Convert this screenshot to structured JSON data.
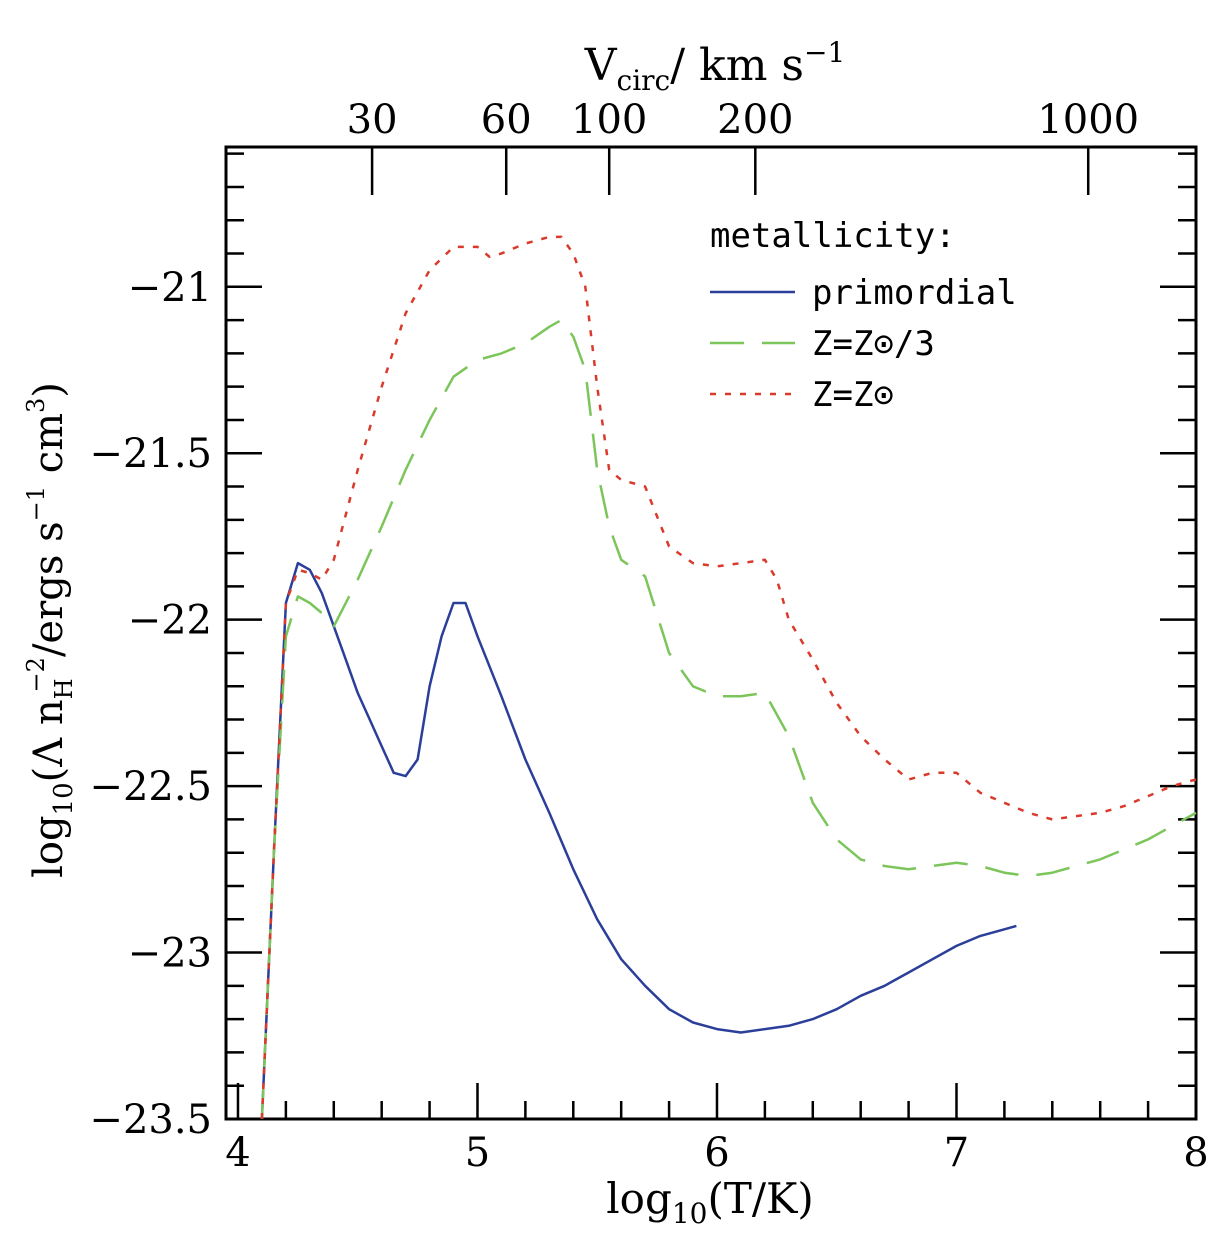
{
  "chart_data": {
    "type": "line",
    "title": "",
    "xlabel": {
      "prefix": "log",
      "sub": "10",
      "rest": "(T/K)"
    },
    "ylabel": {
      "prefix": "log",
      "sub": "10",
      "open": "(Λ n",
      "sub2": "H",
      "sup2": "−2",
      "mid": "/ergs s",
      "sup3": "−1",
      "mid2": " cm",
      "sup4": "3",
      "close": ")"
    },
    "top_axis_label": {
      "main": "V",
      "sub": "circ",
      "rest": "/ km s",
      "sup": "−1"
    },
    "xlim": [
      3.95,
      8.0
    ],
    "ylim": [
      -23.5,
      -20.58
    ],
    "x_ticks": [
      4,
      5,
      6,
      7,
      8
    ],
    "x_tick_labels": [
      "4",
      "5",
      "6",
      "7",
      "8"
    ],
    "y_ticks": [
      -21,
      -21.5,
      -22,
      -22.5,
      -23,
      -23.5
    ],
    "y_tick_labels": [
      "−21",
      "−21.5",
      "−22",
      "−22.5",
      "−23",
      "−23.5"
    ],
    "top_ticks": [
      {
        "label": "30",
        "x": 4.56
      },
      {
        "label": "60",
        "x": 5.12
      },
      {
        "label": "100",
        "x": 5.55
      },
      {
        "label": "200",
        "x": 6.16
      },
      {
        "label": "1000",
        "x": 7.55
      }
    ],
    "legend_title": "metallicity:",
    "legend_position": "top-right",
    "series": [
      {
        "name": "primordial",
        "color": "#2b3f9a",
        "dash": "solid",
        "x": [
          4.1,
          4.15,
          4.2,
          4.25,
          4.3,
          4.35,
          4.4,
          4.45,
          4.5,
          4.55,
          4.6,
          4.65,
          4.7,
          4.75,
          4.8,
          4.85,
          4.9,
          4.95,
          5.0,
          5.1,
          5.2,
          5.3,
          5.4,
          5.5,
          5.6,
          5.7,
          5.8,
          5.9,
          6.0,
          6.1,
          6.2,
          6.3,
          6.4,
          6.5,
          6.6,
          6.7,
          6.8,
          6.9,
          7.0,
          7.1,
          7.2,
          7.25
        ],
        "y": [
          -23.5,
          -22.7,
          -21.95,
          -21.83,
          -21.85,
          -21.92,
          -22.02,
          -22.12,
          -22.22,
          -22.3,
          -22.38,
          -22.46,
          -22.47,
          -22.42,
          -22.2,
          -22.05,
          -21.95,
          -21.95,
          -22.05,
          -22.23,
          -22.42,
          -22.58,
          -22.75,
          -22.9,
          -23.02,
          -23.1,
          -23.17,
          -23.21,
          -23.23,
          -23.24,
          -23.23,
          -23.22,
          -23.2,
          -23.17,
          -23.13,
          -23.1,
          -23.06,
          -23.02,
          -22.98,
          -22.95,
          -22.93,
          -22.92
        ]
      },
      {
        "name": "Z=Z⊙/3",
        "color": "#7cc55a",
        "dash": "long",
        "x": [
          4.1,
          4.15,
          4.2,
          4.25,
          4.3,
          4.35,
          4.4,
          4.5,
          4.6,
          4.7,
          4.8,
          4.9,
          5.0,
          5.1,
          5.2,
          5.3,
          5.35,
          5.4,
          5.45,
          5.5,
          5.55,
          5.6,
          5.7,
          5.8,
          5.9,
          6.0,
          6.1,
          6.2,
          6.3,
          6.4,
          6.5,
          6.6,
          6.7,
          6.8,
          6.9,
          7.0,
          7.1,
          7.2,
          7.3,
          7.4,
          7.5,
          7.6,
          7.7,
          7.8,
          7.9,
          8.0
        ],
        "y": [
          -23.5,
          -22.7,
          -22.05,
          -21.93,
          -21.95,
          -21.98,
          -22.02,
          -21.88,
          -21.72,
          -21.55,
          -21.4,
          -21.27,
          -21.22,
          -21.2,
          -21.17,
          -21.12,
          -21.1,
          -21.15,
          -21.25,
          -21.55,
          -21.72,
          -21.82,
          -21.87,
          -22.1,
          -22.2,
          -22.23,
          -22.23,
          -22.22,
          -22.35,
          -22.55,
          -22.66,
          -22.72,
          -22.74,
          -22.75,
          -22.74,
          -22.73,
          -22.74,
          -22.76,
          -22.77,
          -22.76,
          -22.74,
          -22.72,
          -22.69,
          -22.66,
          -22.62,
          -22.58
        ]
      },
      {
        "name": "Z=Z⊙",
        "color": "#d93a2b",
        "dash": "dot",
        "x": [
          4.1,
          4.15,
          4.2,
          4.25,
          4.3,
          4.35,
          4.4,
          4.5,
          4.6,
          4.7,
          4.8,
          4.9,
          5.0,
          5.05,
          5.1,
          5.2,
          5.3,
          5.35,
          5.4,
          5.45,
          5.5,
          5.55,
          5.6,
          5.7,
          5.8,
          5.9,
          6.0,
          6.1,
          6.2,
          6.25,
          6.3,
          6.4,
          6.5,
          6.6,
          6.7,
          6.8,
          6.9,
          7.0,
          7.1,
          7.2,
          7.3,
          7.4,
          7.5,
          7.6,
          7.7,
          7.8,
          7.9,
          8.0
        ],
        "y": [
          -23.5,
          -22.7,
          -21.95,
          -21.85,
          -21.86,
          -21.88,
          -21.82,
          -21.55,
          -21.3,
          -21.08,
          -20.95,
          -20.88,
          -20.88,
          -20.91,
          -20.9,
          -20.87,
          -20.85,
          -20.85,
          -20.9,
          -21.0,
          -21.3,
          -21.55,
          -21.58,
          -21.6,
          -21.78,
          -21.83,
          -21.84,
          -21.83,
          -21.82,
          -21.88,
          -22.0,
          -22.12,
          -22.25,
          -22.35,
          -22.42,
          -22.48,
          -22.46,
          -22.46,
          -22.52,
          -22.55,
          -22.58,
          -22.6,
          -22.59,
          -22.58,
          -22.56,
          -22.53,
          -22.5,
          -22.48
        ]
      }
    ]
  }
}
